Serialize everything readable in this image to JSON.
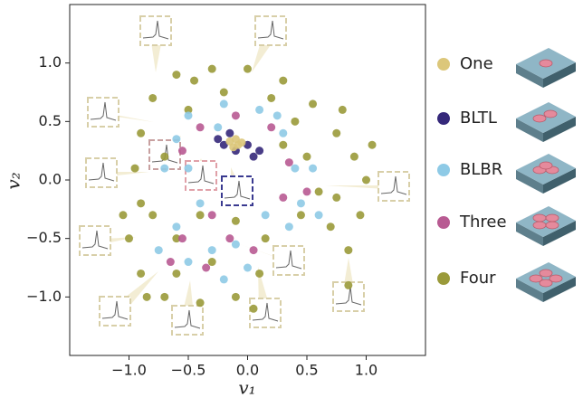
{
  "chart_data": {
    "type": "scatter",
    "x_label": "v₁",
    "y_label": "v₂",
    "xlim": [
      -1.5,
      1.5
    ],
    "ylim": [
      -1.5,
      1.5
    ],
    "xticks": [
      {
        "value": -1,
        "label": "−1.0"
      },
      {
        "value": -0.5,
        "label": "−0.5"
      },
      {
        "value": 0,
        "label": "0.0"
      },
      {
        "value": 0.5,
        "label": "0.5"
      },
      {
        "value": 1,
        "label": "1.0"
      }
    ],
    "yticks": [
      {
        "value": -1,
        "label": "−1.0"
      },
      {
        "value": -0.5,
        "label": "−0.5"
      },
      {
        "value": 0,
        "label": "0.0"
      },
      {
        "value": 0.5,
        "label": "0.5"
      },
      {
        "value": 1,
        "label": "1.0"
      }
    ],
    "series": [
      {
        "name": "Four",
        "color": "#9a9a3a",
        "x": [
          -0.6,
          -0.3,
          0,
          0.3,
          0.55,
          0.75,
          0.9,
          1.0,
          0.95,
          0.85,
          0.7,
          0.6,
          0.5,
          0.4,
          -0.8,
          -0.9,
          -0.95,
          -0.9,
          -1.0,
          -0.9,
          -0.7,
          -0.4,
          -0.1,
          0.1,
          0.15,
          -0.1,
          -0.4,
          -0.6,
          -0.3,
          -0.6,
          -0.8,
          -0.7,
          -0.5,
          -0.2,
          0.2,
          0.75,
          1.05,
          0.8,
          -0.45,
          0.05,
          -0.85,
          -1.05,
          0.3,
          0.85,
          0.45
        ],
        "values": [
          0.9,
          0.95,
          0.95,
          0.85,
          0.65,
          0.4,
          0.2,
          0,
          -0.3,
          -0.6,
          -0.4,
          -0.1,
          0.2,
          0.5,
          0.7,
          0.4,
          0.1,
          -0.2,
          -0.5,
          -0.8,
          -1.0,
          -1.05,
          -1.0,
          -0.8,
          -0.5,
          -0.35,
          -0.3,
          -0.5,
          -0.7,
          -0.8,
          -0.3,
          0.2,
          0.6,
          0.75,
          0.7,
          -0.15,
          0.3,
          0.6,
          0.85,
          -1.1,
          -1.0,
          -0.3,
          0.3,
          -0.9,
          -0.3
        ]
      },
      {
        "name": "BLBR",
        "color": "#8ecae6",
        "x": [
          -0.5,
          -0.2,
          0.1,
          0.3,
          0.4,
          0.45,
          0.6,
          -0.6,
          -0.5,
          -0.4,
          -0.6,
          -0.5,
          -0.3,
          -0.1,
          0.0,
          -0.2,
          -0.75,
          0.15,
          -0.25,
          0.35,
          0.25,
          -0.7,
          0.55
        ],
        "values": [
          0.55,
          0.65,
          0.6,
          0.4,
          0.1,
          -0.2,
          -0.3,
          0.35,
          0.1,
          -0.2,
          -0.4,
          -0.7,
          -0.6,
          -0.55,
          -0.75,
          -0.85,
          -0.6,
          -0.3,
          0.45,
          -0.4,
          0.55,
          0.1,
          0.1
        ]
      },
      {
        "name": "Three",
        "color": "#b85a92",
        "x": [
          -0.4,
          -0.1,
          0.2,
          0.35,
          0.5,
          -0.55,
          -0.35,
          -0.15,
          -0.65,
          0.05,
          -0.55,
          0.3,
          -0.3
        ],
        "values": [
          0.45,
          0.55,
          0.45,
          0.15,
          -0.1,
          -0.5,
          -0.75,
          -0.5,
          -0.7,
          -0.6,
          0.25,
          -0.15,
          -0.3
        ]
      },
      {
        "name": "BLTL",
        "color": "#35287a",
        "x": [
          -0.2,
          -0.1,
          0.0,
          0.05,
          -0.25,
          -0.15,
          0.1
        ],
        "values": [
          0.3,
          0.25,
          0.3,
          0.2,
          0.35,
          0.4,
          0.25
        ]
      },
      {
        "name": "One",
        "color": "#dcc77a",
        "x": [
          -0.15,
          -0.08,
          -0.12,
          -0.05,
          -0.1
        ],
        "values": [
          0.33,
          0.3,
          0.28,
          0.32,
          0.35
        ]
      }
    ],
    "legend_order": [
      "One",
      "BLTL",
      "BLBR",
      "Three",
      "Four"
    ]
  }
}
